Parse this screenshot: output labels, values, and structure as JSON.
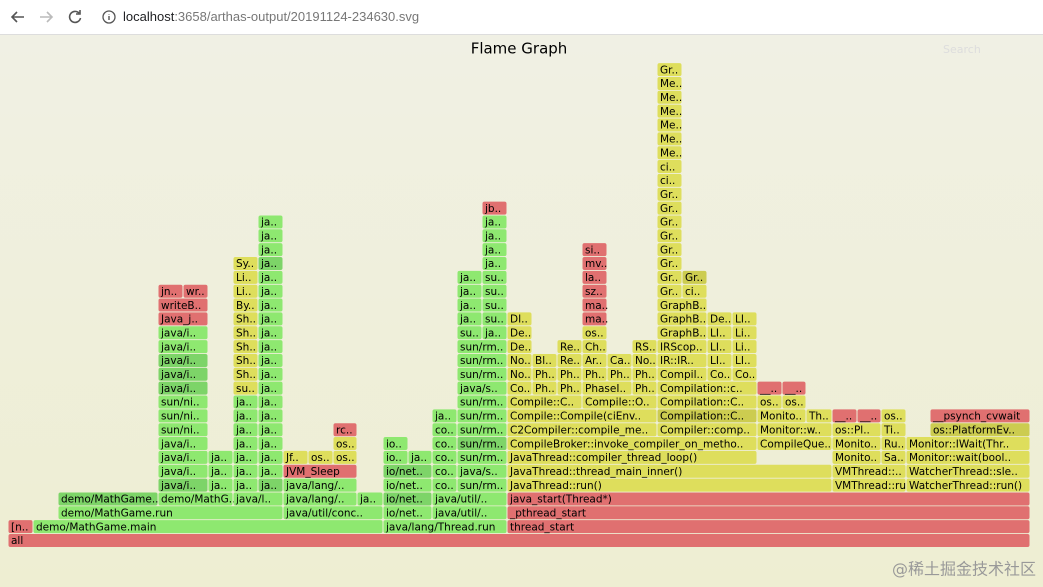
{
  "browser": {
    "host": "localhost",
    "path": ":3658/arthas-output/20191124-234630.svg"
  },
  "title": "Flame Graph",
  "search": "Search",
  "watermark": "@稀土掘金技术社区",
  "rows": [
    [
      "all"
    ],
    [
      "[n..",
      "demo/MathGame.main",
      "java/lang/Thread.run",
      "thread_start"
    ],
    [
      "demo/MathGame.run",
      "java/util/conc..",
      "io/net..",
      "java/util/..",
      "_pthread_start"
    ],
    [
      "demo/MathGame..",
      "demo/MathG..",
      "java/l..",
      "java/lang/..",
      "ja..",
      "io/net..",
      "java/util/..",
      "java_start(Thread*)"
    ],
    [
      "java/i..",
      "ja..",
      "ja..",
      "ja..",
      "java/lang/..",
      "io/net..",
      "co..",
      "sun/rm..",
      "JavaThread::run()",
      "VMThread::run()",
      "WatcherThread::run()"
    ],
    [
      "java/i..",
      "ja..",
      "ja..",
      "ja..",
      "JVM_Sleep",
      "io/net..",
      "co..",
      "java/s..",
      "JavaThread::thread_main_inner()",
      "VMThread::..",
      "WatcherThread::sle.."
    ],
    [
      "java/i..",
      "ja..",
      "ja..",
      "ja..",
      "Jf..",
      "os..",
      "os..",
      "io..",
      "ja..",
      "co..",
      "sun/rm..",
      "JavaThread::compiler_thread_loop()",
      "Monito..",
      "Sa..",
      "Monitor::wait(bool.."
    ],
    [
      "java/i..",
      "ja..",
      "ja..",
      "os..",
      "io..",
      "co..",
      "sun/rm..",
      "CompileBroker::invoke_compiler_on_metho..",
      "CompileQue..",
      "Monito..",
      "Ru..",
      "Monitor::IWait(Thr.."
    ],
    [
      "sun/ni..",
      "ja..",
      "ja..",
      "rc..",
      "co..",
      "sun/rm..",
      "C2Compiler::compile_me..",
      "Compiler::comp..",
      "Monitor::w..",
      "os::Pl..",
      "Ti..",
      "os::PlatformEv.."
    ],
    [
      "sun/ni..",
      "ja..",
      "ja..",
      "ja..",
      "sun/rm..",
      "Compile::Compile(ciEnv..",
      "Compilation::C..",
      "Monito..",
      "Th..",
      "__..",
      "__..",
      "os..",
      "__psynch_cvwait"
    ],
    [
      "sun/ni..",
      "ja..",
      "ja..",
      "sun/rm..",
      "Compile::C..",
      "Compile::O..",
      "Compilation::C..",
      "os..",
      "os.."
    ],
    [
      "java/i..",
      "su..",
      "ja..",
      "java/s..",
      "Co..",
      "Ph..",
      "Ph..",
      "PhaseI..",
      "Ph..",
      "Compilation::c..",
      "__..",
      "__.."
    ],
    [
      "java/i..",
      "Sh..",
      "ja..",
      "sun/rm..",
      "No..",
      "Ph..",
      "Ph..",
      "Ph..",
      "Ph..",
      "Ph..",
      "Compil..",
      "Co..",
      "Co.."
    ],
    [
      "java/i..",
      "Sh..",
      "ja..",
      "sun/rm..",
      "No..",
      "Bl..",
      "Re..",
      "Ar..",
      "Ca..",
      "No..",
      "IR::IR..",
      "LI..",
      "LI.."
    ],
    [
      "java/i..",
      "Sh..",
      "ja..",
      "sun/rm..",
      "De..",
      "Re..",
      "Ch..",
      "RS..",
      "IRScop..",
      "LI..",
      "Li.."
    ],
    [
      "java/i..",
      "Sh..",
      "ja..",
      "su..",
      "ja..",
      "De..",
      "os..",
      "GraphB..",
      "LI..",
      "Li.."
    ],
    [
      "Java_j..",
      "Sh..",
      "ja..",
      "ja..",
      "su..",
      "DI..",
      "ma..",
      "GraphB..",
      "De..",
      "LI.."
    ],
    [
      "writeB..",
      "By..",
      "ja..",
      "ja..",
      "su..",
      "ma..",
      "GraphB.."
    ],
    [
      "jn..",
      "wr..",
      "Li..",
      "ja..",
      "ja..",
      "su..",
      "sz..",
      "Gr..",
      "ci.."
    ],
    [
      "Li..",
      "ja..",
      "ja..",
      "su..",
      "la..",
      "Gr..",
      "Gr.."
    ],
    [
      "Sy..",
      "ja..",
      "ja..",
      "mv..",
      "Gr.."
    ],
    [
      "ja..",
      "ja..",
      "si..",
      "Gr.."
    ],
    [
      "ja..",
      "ja..",
      "Gr.."
    ],
    [
      "ja..",
      "ja..",
      "Gr.."
    ],
    [
      "jb..",
      "Gr.."
    ],
    [
      "Gr.."
    ],
    [
      "ci.."
    ],
    [
      "ci.."
    ],
    [
      "Me.."
    ],
    [
      "Me.."
    ],
    [
      "Me.."
    ],
    [
      "Me.."
    ],
    [
      "Me.."
    ],
    [
      "Me.."
    ],
    [
      "Gr.."
    ]
  ]
}
